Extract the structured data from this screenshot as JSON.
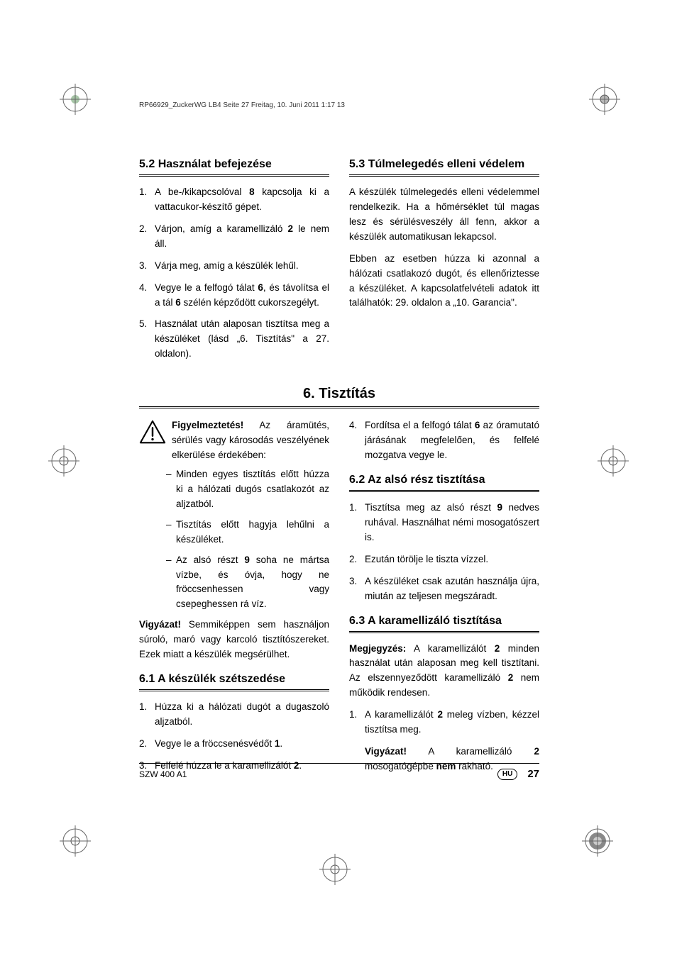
{
  "header_line": "RP66929_ZuckerWG LB4  Seite 27  Freitag, 10. Juni 2011  1:17 13",
  "section_52": {
    "title": "5.2 Használat befejezése",
    "items": [
      "A be-/kikapcsolóval <b>8</b> kapcsolja ki a vattacukor-készítő gépet.",
      "Várjon, amíg a karamellizáló <b>2</b> le nem áll.",
      "Várja meg, amíg a készülék lehűl.",
      "Vegye le a felfogó tálat <b>6</b>, és távolítsa el a tál <b>6</b> szélén képződött cukorszegélyt.",
      "Használat után alaposan tisztítsa meg a készüléket (lásd „6. Tisztítás\" a 27. oldalon)."
    ]
  },
  "section_53": {
    "title": "5.3 Túlmelegedés elleni védelem",
    "p1": "A készülék túlmelegedés elleni védelemmel rendelkezik. Ha a hőmérséklet túl magas lesz és sérülésveszély áll fenn, akkor a készülék automatikusan lekapcsol.",
    "p2": "Ebben az esetben húzza ki azonnal a hálózati csatlakozó dugót, és ellenőriztesse a készüléket. A kapcsolatfelvételi adatok itt találhatók: 29. oldalon a „10. Garancia\"."
  },
  "chapter6": "6. Tisztítás",
  "warning": {
    "lead": "<b>Figyelmeztetés!</b> Az áramütés, sérülés vagy károsodás veszélyének elkerülése érdekében:",
    "bullets": [
      "Minden egyes tisztítás előtt húzza ki a hálózati dugós csatlakozót az aljzatból.",
      "Tisztítás előtt hagyja lehűlni a készüléket.",
      "Az alsó részt <b>9</b> soha ne mártsa vízbe, és óvja, hogy ne fröccsenhessen vagy csepeghessen rá víz."
    ]
  },
  "caution": "<b>Vigyázat!</b> Semmiképpen sem használjon súroló, maró vagy karcoló tisztítószereket. Ezek miatt a készülék megsérülhet.",
  "section_61": {
    "title": "6.1 A készülék szétszedése",
    "items": [
      "Húzza ki a hálózati dugót a dugaszoló aljzatból.",
      "Vegye le a fröccsenésvédőt <b>1</b>.",
      "Felfelé húzza le a karamellizálót <b>2</b>."
    ]
  },
  "item4_top_right": "Fordítsa el a felfogó tálat <b>6</b> az óramutató járásának megfelelően, és felfelé mozgatva vegye le.",
  "section_62": {
    "title": "6.2 Az alsó rész tisztítása",
    "items": [
      "Tisztítsa meg az alsó részt <b>9</b> nedves ruhával. Használhat némi mosogatószert is.",
      "Ezután törölje le tiszta vízzel.",
      "A készüléket csak azután használja újra, miután az teljesen megszáradt."
    ]
  },
  "section_63": {
    "title": "6.3 A karamellizáló tisztítása",
    "note": "<b>Megjegyzés:</b> A karamellizálót <b>2</b> minden használat után alaposan meg kell tisztítani. Az elszennyeződött karamellizáló <b>2</b> nem működik rendesen.",
    "items": [
      "A karamellizálót <b>2</b> meleg vízben, kézzel tisztítsa meg."
    ],
    "caution2": "<b>Vigyázat!</b> A karamellizáló <b>2</b> mosogatógépbe <b>nem</b> rakható."
  },
  "footer": {
    "model": "SZW 400 A1",
    "country": "HU",
    "page": "27"
  },
  "colors": {
    "text": "#000000",
    "bg": "#ffffff"
  }
}
